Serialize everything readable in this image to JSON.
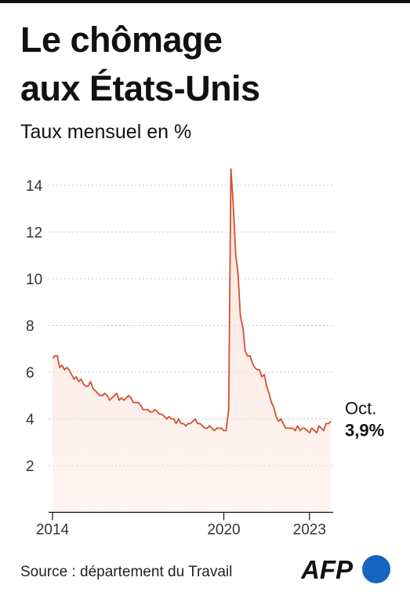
{
  "header": {
    "title_line1": "Le chômage",
    "title_line2": "aux États-Unis",
    "subtitle": "Taux mensuel en %"
  },
  "footer": {
    "source": "Source : département du Travail",
    "logo_text": "AFP"
  },
  "colors": {
    "line": "#d2502f",
    "area": "#fbe4dc",
    "grid": "#c8c8c8",
    "logo_blue": "#1565c0"
  },
  "chart_data": {
    "type": "area",
    "title": "Le chômage aux États-Unis",
    "subtitle": "Taux mensuel en %",
    "xlabel": "",
    "ylabel": "",
    "xlim": [
      2014.0,
      2023.83
    ],
    "ylim": [
      0,
      15
    ],
    "yticks": [
      2,
      4,
      6,
      8,
      10,
      12,
      14
    ],
    "xticks": [
      2014,
      2020,
      2023
    ],
    "grid": true,
    "annotation": {
      "label": "Oct.",
      "value_label": "3,9%"
    },
    "series": [
      {
        "x": [
          2014.0,
          2014.08,
          2014.17,
          2014.25,
          2014.33,
          2014.42,
          2014.5,
          2014.58,
          2014.67,
          2014.75,
          2014.83,
          2014.92,
          2015.0,
          2015.08,
          2015.17,
          2015.25,
          2015.33,
          2015.42,
          2015.5,
          2015.58,
          2015.67,
          2015.75,
          2015.83,
          2015.92,
          2016.0,
          2016.08,
          2016.17,
          2016.25,
          2016.33,
          2016.42,
          2016.5,
          2016.58,
          2016.67,
          2016.75,
          2016.83,
          2016.92,
          2017.0,
          2017.08,
          2017.17,
          2017.25,
          2017.33,
          2017.42,
          2017.5,
          2017.58,
          2017.67,
          2017.75,
          2017.83,
          2017.92,
          2018.0,
          2018.08,
          2018.17,
          2018.25,
          2018.33,
          2018.42,
          2018.5,
          2018.58,
          2018.67,
          2018.75,
          2018.83,
          2018.92,
          2019.0,
          2019.08,
          2019.17,
          2019.25,
          2019.33,
          2019.42,
          2019.5,
          2019.58,
          2019.67,
          2019.75,
          2019.83,
          2019.92,
          2020.0,
          2020.08,
          2020.17,
          2020.25,
          2020.33,
          2020.42,
          2020.5,
          2020.58,
          2020.67,
          2020.75,
          2020.83,
          2020.92,
          2021.0,
          2021.08,
          2021.17,
          2021.25,
          2021.33,
          2021.42,
          2021.5,
          2021.58,
          2021.67,
          2021.75,
          2021.83,
          2021.92,
          2022.0,
          2022.08,
          2022.17,
          2022.25,
          2022.33,
          2022.42,
          2022.5,
          2022.58,
          2022.67,
          2022.75,
          2022.83,
          2022.92,
          2023.0,
          2023.08,
          2023.17,
          2023.25,
          2023.33,
          2023.42,
          2023.5,
          2023.58,
          2023.67,
          2023.75
        ],
        "values": [
          6.6,
          6.7,
          6.7,
          6.2,
          6.3,
          6.1,
          6.2,
          6.1,
          5.9,
          5.7,
          5.8,
          5.6,
          5.7,
          5.5,
          5.4,
          5.4,
          5.6,
          5.3,
          5.2,
          5.1,
          5.0,
          5.0,
          5.1,
          5.0,
          4.8,
          4.9,
          5.0,
          5.1,
          4.8,
          4.9,
          4.8,
          4.9,
          5.0,
          4.9,
          4.7,
          4.7,
          4.7,
          4.6,
          4.4,
          4.4,
          4.4,
          4.3,
          4.3,
          4.4,
          4.3,
          4.2,
          4.2,
          4.1,
          4.0,
          4.1,
          4.0,
          4.0,
          3.8,
          4.0,
          3.8,
          3.8,
          3.7,
          3.8,
          3.8,
          3.9,
          4.0,
          3.8,
          3.8,
          3.7,
          3.6,
          3.6,
          3.7,
          3.6,
          3.5,
          3.6,
          3.6,
          3.6,
          3.5,
          3.5,
          4.4,
          14.7,
          13.2,
          11.0,
          10.2,
          8.4,
          7.9,
          6.9,
          6.7,
          6.7,
          6.4,
          6.2,
          6.1,
          6.1,
          5.8,
          5.9,
          5.4,
          5.1,
          4.7,
          4.5,
          4.1,
          3.9,
          4.0,
          3.8,
          3.6,
          3.6,
          3.6,
          3.6,
          3.5,
          3.7,
          3.5,
          3.6,
          3.6,
          3.5,
          3.4,
          3.6,
          3.5,
          3.4,
          3.7,
          3.6,
          3.5,
          3.8,
          3.8,
          3.9
        ]
      }
    ]
  }
}
